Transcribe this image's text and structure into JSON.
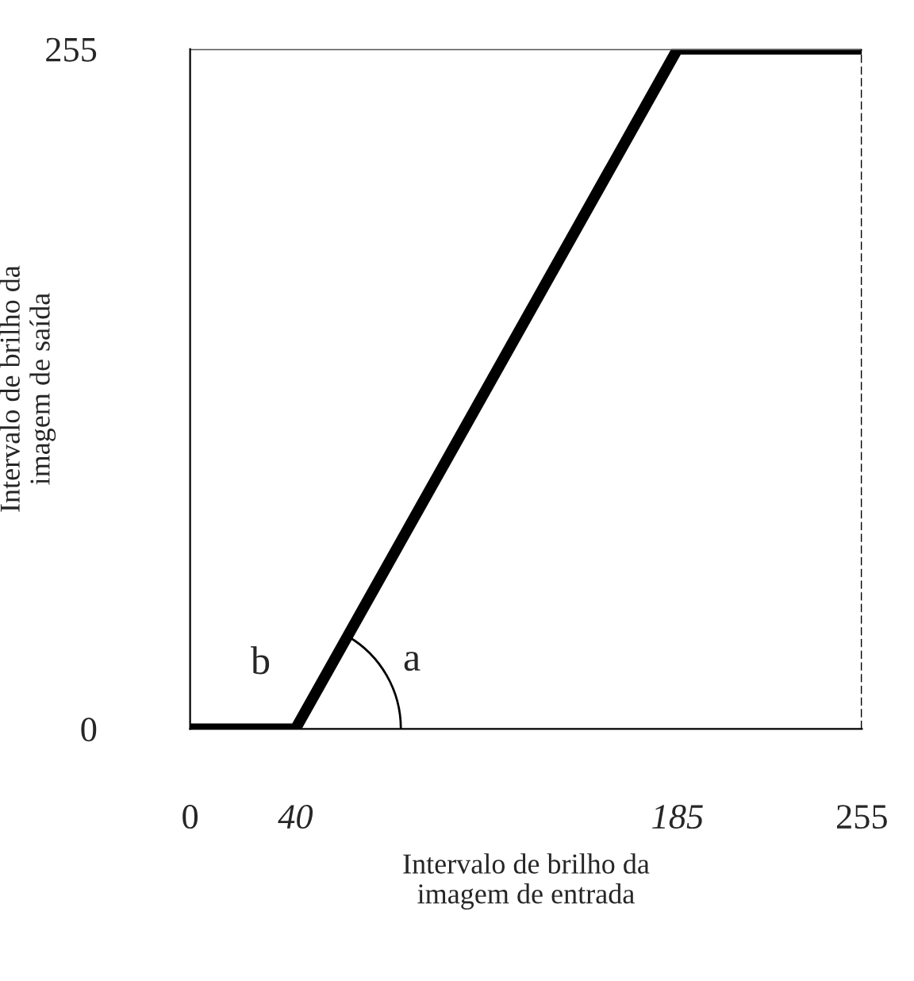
{
  "chart_data": {
    "type": "line",
    "xlabel": "Intervalo de brilho da\nimagem de entrada",
    "ylabel": "Intervalo de brilho da\nimagem de saída",
    "x": [
      0,
      40,
      185,
      255
    ],
    "series": [
      {
        "color": "#000000",
        "values": [
          0,
          0,
          255,
          255
        ]
      }
    ],
    "xlim": [
      0,
      255
    ],
    "ylim": [
      0,
      255
    ],
    "xticks": [
      0,
      40,
      185,
      255
    ],
    "yticks": [
      0,
      255
    ],
    "ref_lines": [
      {
        "axis": "y",
        "value": 255,
        "color": "#555555",
        "line_style": "solid"
      },
      {
        "axis": "x",
        "value": 255,
        "color": "#000000",
        "line_style": "dashed"
      }
    ],
    "annotations": [
      "a",
      "b"
    ],
    "grid": false,
    "marker": "none",
    "line_style": "solid"
  }
}
